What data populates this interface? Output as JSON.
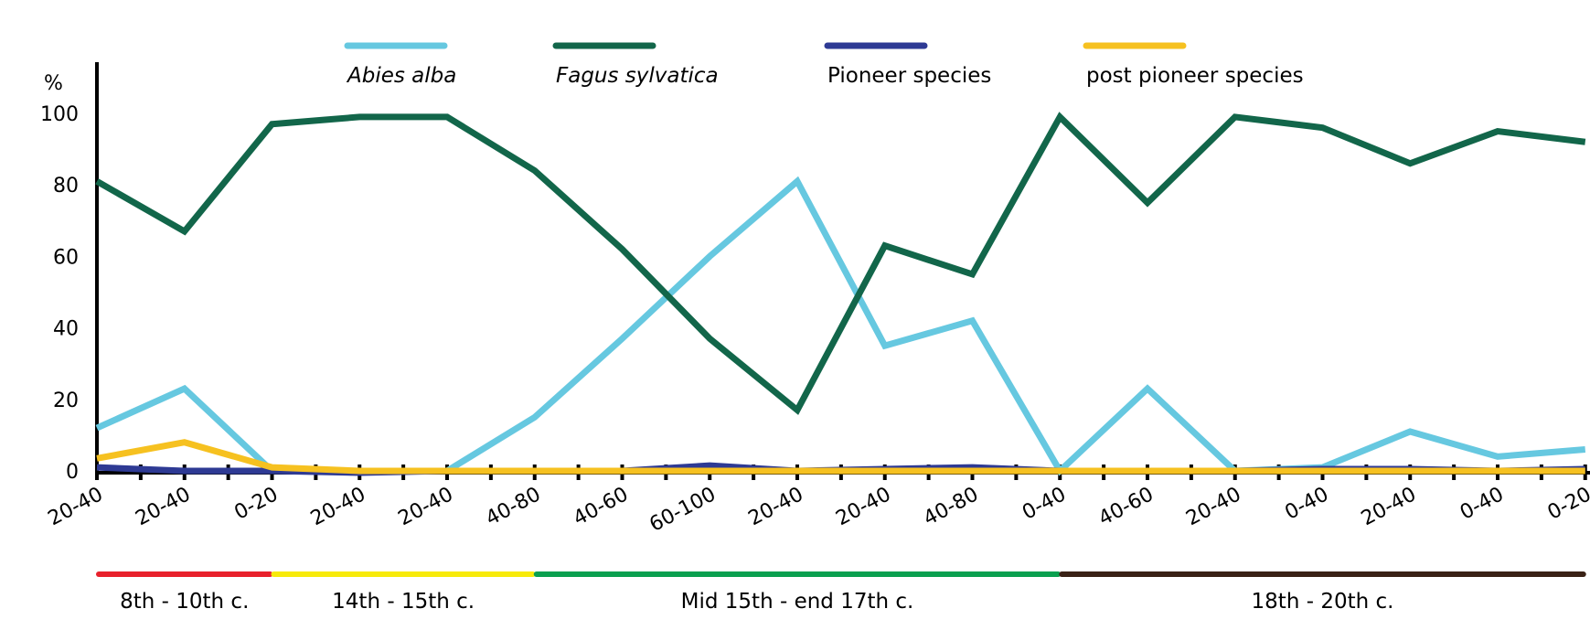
{
  "chart_data": {
    "type": "line",
    "y_unit": "%",
    "ylim": [
      0,
      100
    ],
    "yticks": [
      0,
      20,
      40,
      60,
      80,
      100
    ],
    "categories": [
      "20-40",
      "20-40",
      "0-20",
      "20-40",
      "20-40",
      "40-80",
      "40-60",
      "60-100",
      "20-40",
      "20-40",
      "40-80",
      "0-40",
      "40-60",
      "20-40",
      "0-40",
      "20-40",
      "0-40",
      "0-20"
    ],
    "series": [
      {
        "name": "Abies alba",
        "italic": true,
        "color": "#66c8e0",
        "values": [
          12,
          23,
          0,
          0,
          0,
          15,
          37,
          60,
          81,
          35,
          42,
          0,
          23,
          0,
          1,
          11,
          4,
          6
        ]
      },
      {
        "name": "Fagus sylvatica",
        "italic": true,
        "color": "#12664a",
        "values": [
          81,
          67,
          97,
          99,
          99,
          84,
          62,
          37,
          17,
          63,
          55,
          99,
          75,
          99,
          96,
          86,
          95,
          92
        ]
      },
      {
        "name": "Pioneer species",
        "italic": false,
        "color": "#2e3a94",
        "values": [
          1,
          0,
          0,
          -0.5,
          0,
          0,
          0,
          1.5,
          0,
          0.5,
          1,
          0,
          0,
          0,
          0.5,
          0.5,
          0,
          0.5
        ]
      },
      {
        "name": "post pioneer species",
        "italic": false,
        "color": "#f6c120",
        "values": [
          3.5,
          8,
          1,
          0,
          0,
          0,
          0,
          0,
          0,
          0,
          0,
          0,
          0,
          0,
          0,
          0,
          0,
          0
        ]
      }
    ],
    "periods": [
      {
        "label": "8th - 10th c.",
        "color": "#e8212c",
        "from": 0,
        "to": 2
      },
      {
        "label": "14th - 15th c.",
        "color": "#f7ea0a",
        "from": 2,
        "to": 5
      },
      {
        "label": "Mid 15th - end 17th c.",
        "color": "#0aa04f",
        "from": 5,
        "to": 11
      },
      {
        "label": "18th - 20th c.",
        "color": "#3a2216",
        "from": 11,
        "to": 17
      }
    ],
    "grid": false,
    "legend_position": "top"
  }
}
